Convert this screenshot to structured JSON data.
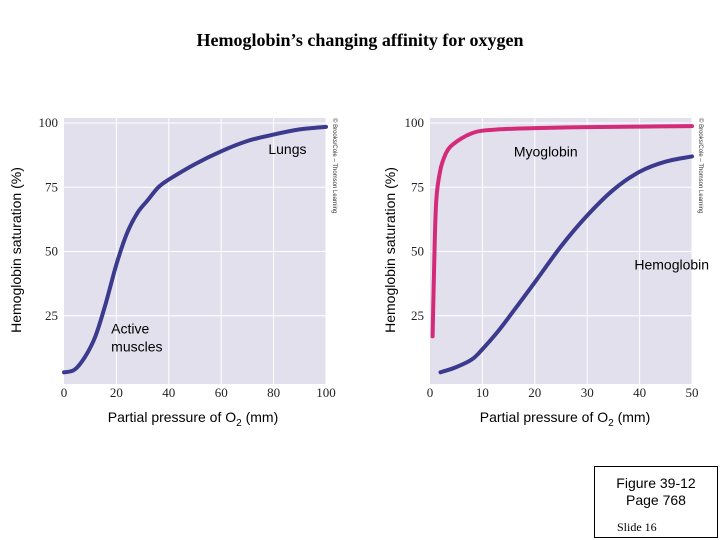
{
  "title": "Hemoglobin’s changing affinity for oxygen",
  "figure_label": {
    "line1": "Figure 39-12",
    "line2": "Page 768",
    "slide": "Slide 16"
  },
  "colors": {
    "plot_bg": "#e2e0ed",
    "grid": "#ffffff",
    "hemoglobin": "#3b3a8c",
    "myoglobin": "#d42a7a"
  },
  "chart_data": [
    {
      "type": "line",
      "ylabel": "Hemoglobin saturation (%)",
      "xlabel_main": "Partial pressure of O",
      "xlabel_sub": "2",
      "xlabel_unit": " (mm)",
      "xlim": [
        0,
        100
      ],
      "ylim": [
        0,
        100
      ],
      "xticks": [
        0,
        20,
        40,
        60,
        80,
        100
      ],
      "yticks": [
        25,
        50,
        75,
        100
      ],
      "grid": true,
      "credit": "© Brooks/Cole – Thomson Learning",
      "series": [
        {
          "color": "hemoglobin",
          "x": [
            0,
            4,
            8,
            12,
            16,
            20,
            24,
            28,
            32,
            36,
            40,
            50,
            60,
            70,
            80,
            90,
            100
          ],
          "y": [
            3,
            4,
            9,
            17,
            30,
            45,
            57,
            65,
            70,
            75,
            78,
            84,
            89,
            93,
            95.5,
            97.5,
            98.5
          ]
        }
      ],
      "annotations": [
        {
          "lines": [
            "Lungs"
          ],
          "x": 78,
          "y": 88
        },
        {
          "lines": [
            "Active",
            "muscles"
          ],
          "x": 18,
          "y": 18
        }
      ]
    },
    {
      "type": "line",
      "ylabel": "Hemoglobin saturation (%)",
      "xlabel_main": "Partial pressure of O",
      "xlabel_sub": "2",
      "xlabel_unit": " (mm)",
      "xlim": [
        0,
        50
      ],
      "ylim": [
        0,
        100
      ],
      "xticks": [
        0,
        10,
        20,
        30,
        40,
        50
      ],
      "yticks": [
        25,
        50,
        75,
        100
      ],
      "grid": true,
      "credit": "© Brooks/Cole – Thomson Learning",
      "series": [
        {
          "color": "myoglobin",
          "x": [
            0.5,
            0.8,
            1.2,
            2,
            3,
            4,
            6,
            8,
            10,
            15,
            20,
            30,
            40,
            50
          ],
          "y": [
            17,
            45,
            70,
            82,
            88,
            91,
            94,
            96,
            97,
            97.7,
            98,
            98.4,
            98.6,
            98.8
          ]
        },
        {
          "color": "hemoglobin",
          "x": [
            2,
            5,
            8,
            10,
            13,
            16,
            20,
            25,
            30,
            35,
            40,
            45,
            50
          ],
          "y": [
            3,
            5,
            8,
            12,
            19,
            27,
            38,
            52,
            64,
            74,
            81,
            85,
            87
          ]
        }
      ],
      "annotations": [
        {
          "lines": [
            "Myoglobin"
          ],
          "x": 16,
          "y": 87
        },
        {
          "lines": [
            "Hemoglobin"
          ],
          "x": 39,
          "y": 43
        }
      ]
    }
  ]
}
